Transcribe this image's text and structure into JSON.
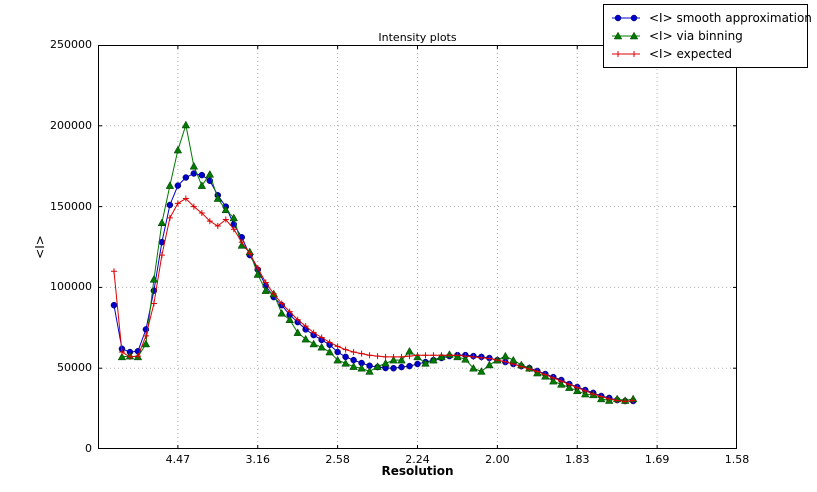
{
  "figure": {
    "title": "Intensity plots",
    "xlabel": "Resolution",
    "ylabel": "<I>"
  },
  "legend": {
    "items": [
      {
        "label": "<I> smooth approximation",
        "marker": "circle",
        "color": "#0000cc"
      },
      {
        "label": "<I> via binning",
        "marker": "triangle",
        "color": "#007a00"
      },
      {
        "label": "<I> expected",
        "marker": "plus",
        "color": "#dd0000"
      }
    ]
  },
  "chart_data": {
    "type": "line",
    "title": "Intensity plots",
    "xlabel": "Resolution",
    "ylabel": "<I>",
    "grid": true,
    "grid_color": "#b0b0b0",
    "legend_position": "outside-top-right",
    "x_axis": {
      "unit": "1/d^2 (resolution axis, labels in Angstrom d-spacing)",
      "range": [
        0,
        0.4
      ],
      "ticks": [
        {
          "pos": 0.05,
          "label": "4.47"
        },
        {
          "pos": 0.1,
          "label": "3.16"
        },
        {
          "pos": 0.15,
          "label": "2.58"
        },
        {
          "pos": 0.2,
          "label": "2.24"
        },
        {
          "pos": 0.25,
          "label": "2.00"
        },
        {
          "pos": 0.3,
          "label": "1.83"
        },
        {
          "pos": 0.35,
          "label": "1.69"
        },
        {
          "pos": 0.4,
          "label": "1.58"
        }
      ]
    },
    "y_axis": {
      "range": [
        0,
        250000
      ],
      "ticks": [
        {
          "pos": 0,
          "label": "0"
        },
        {
          "pos": 50000,
          "label": "50000"
        },
        {
          "pos": 100000,
          "label": "100000"
        },
        {
          "pos": 150000,
          "label": "150000"
        },
        {
          "pos": 200000,
          "label": "200000"
        },
        {
          "pos": 250000,
          "label": "250000"
        }
      ]
    },
    "x": [
      0.01,
      0.015,
      0.02,
      0.025,
      0.03,
      0.035,
      0.04,
      0.045,
      0.05,
      0.055,
      0.06,
      0.065,
      0.07,
      0.075,
      0.08,
      0.085,
      0.09,
      0.095,
      0.1,
      0.105,
      0.11,
      0.115,
      0.12,
      0.125,
      0.13,
      0.135,
      0.14,
      0.145,
      0.15,
      0.155,
      0.16,
      0.165,
      0.17,
      0.175,
      0.18,
      0.185,
      0.19,
      0.195,
      0.2,
      0.205,
      0.21,
      0.215,
      0.22,
      0.225,
      0.23,
      0.235,
      0.24,
      0.245,
      0.25,
      0.255,
      0.26,
      0.265,
      0.27,
      0.275,
      0.28,
      0.285,
      0.29,
      0.295,
      0.3,
      0.305,
      0.31,
      0.315,
      0.32,
      0.325,
      0.33,
      0.335
    ],
    "series": [
      {
        "name": "<I> smooth approximation",
        "color": "#0000cc",
        "marker": "circle",
        "values": [
          89000,
          62000,
          60000,
          60500,
          74000,
          98000,
          128000,
          151000,
          163000,
          168000,
          170500,
          169500,
          166000,
          157000,
          150000,
          139000,
          131000,
          120000,
          111000,
          101000,
          94000,
          89000,
          83000,
          78500,
          74000,
          70500,
          67500,
          64500,
          60000,
          57000,
          55000,
          53200,
          51500,
          50700,
          50100,
          50000,
          50700,
          51300,
          52600,
          53800,
          55000,
          56300,
          57500,
          58100,
          58100,
          57500,
          57000,
          56300,
          55000,
          53800,
          52600,
          51300,
          50100,
          48300,
          46400,
          44500,
          42700,
          40200,
          38400,
          36500,
          34700,
          32800,
          31600,
          30300,
          29700,
          29700
        ]
      },
      {
        "name": "<I> via binning",
        "color": "#007a00",
        "marker": "triangle",
        "values": [
          null,
          57000,
          57500,
          57000,
          65000,
          105000,
          140000,
          163000,
          185000,
          200500,
          175000,
          163000,
          170000,
          155000,
          148000,
          143000,
          126000,
          122000,
          108000,
          98000,
          96000,
          84000,
          80000,
          72000,
          68000,
          65000,
          63000,
          60000,
          55000,
          53000,
          51000,
          50000,
          48000,
          51000,
          53000,
          55000,
          55000,
          60500,
          57000,
          53000,
          55000,
          57000,
          58500,
          57000,
          55500,
          50000,
          48000,
          52000,
          55000,
          57500,
          55000,
          52000,
          50000,
          47000,
          45000,
          42000,
          40000,
          38000,
          36000,
          34000,
          33500,
          31000,
          30000,
          31000,
          30000,
          31000
        ]
      },
      {
        "name": "<I> expected",
        "color": "#dd0000",
        "marker": "plus",
        "values": [
          110000,
          60000,
          57000,
          57500,
          70000,
          90000,
          120000,
          143000,
          152000,
          155000,
          150000,
          146000,
          141000,
          138000,
          142000,
          136000,
          128000,
          121000,
          112000,
          103000,
          96000,
          90000,
          85000,
          80000,
          76000,
          72000,
          69000,
          66000,
          63500,
          61500,
          60000,
          59000,
          58000,
          57500,
          57000,
          57000,
          57000,
          57500,
          58000,
          58000,
          58000,
          58000,
          58000,
          58000,
          57500,
          57000,
          56500,
          56000,
          55000,
          54000,
          52500,
          51000,
          49500,
          48000,
          46000,
          44000,
          42000,
          40000,
          38000,
          36000,
          34000,
          32500,
          31000,
          30000,
          29500,
          30000
        ]
      }
    ]
  }
}
